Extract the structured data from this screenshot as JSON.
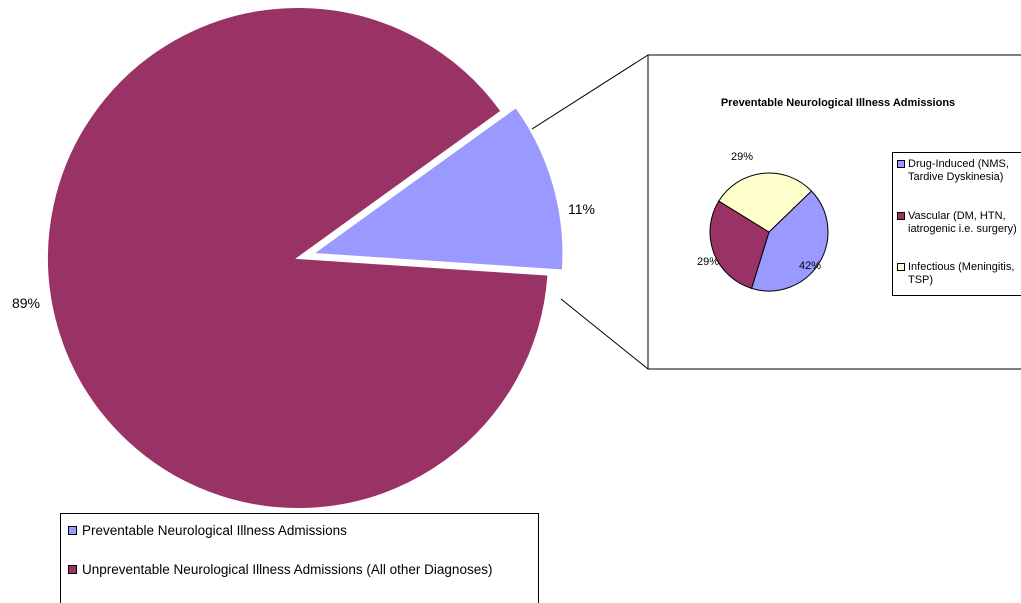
{
  "chart_data": [
    {
      "type": "pie",
      "title": "",
      "categories": [
        "Preventable Neurological Illness Admissions",
        "Unpreventable Neurological Illness Admissions (All other Diagnoses)"
      ],
      "values": [
        11,
        89
      ],
      "labels": [
        "11%",
        "89%"
      ],
      "colors": [
        "#9999ff",
        "#993366"
      ],
      "exploded": "Preventable Neurological Illness Admissions",
      "legend_position": "bottom"
    },
    {
      "type": "pie",
      "title": "Preventable Neurological Illness Admissions",
      "categories": [
        "Drug-Induced (NMS, Tardive Dyskinesia)",
        "Vascular (DM, HTN, iatrogenic i.e. surgery)",
        "Infectious (Meningitis, TSP)"
      ],
      "values": [
        42,
        29,
        29
      ],
      "labels": [
        "42%",
        "29%",
        "29%"
      ],
      "colors": [
        "#9999ff",
        "#993366",
        "#ffffcc"
      ],
      "legend_position": "right"
    }
  ]
}
